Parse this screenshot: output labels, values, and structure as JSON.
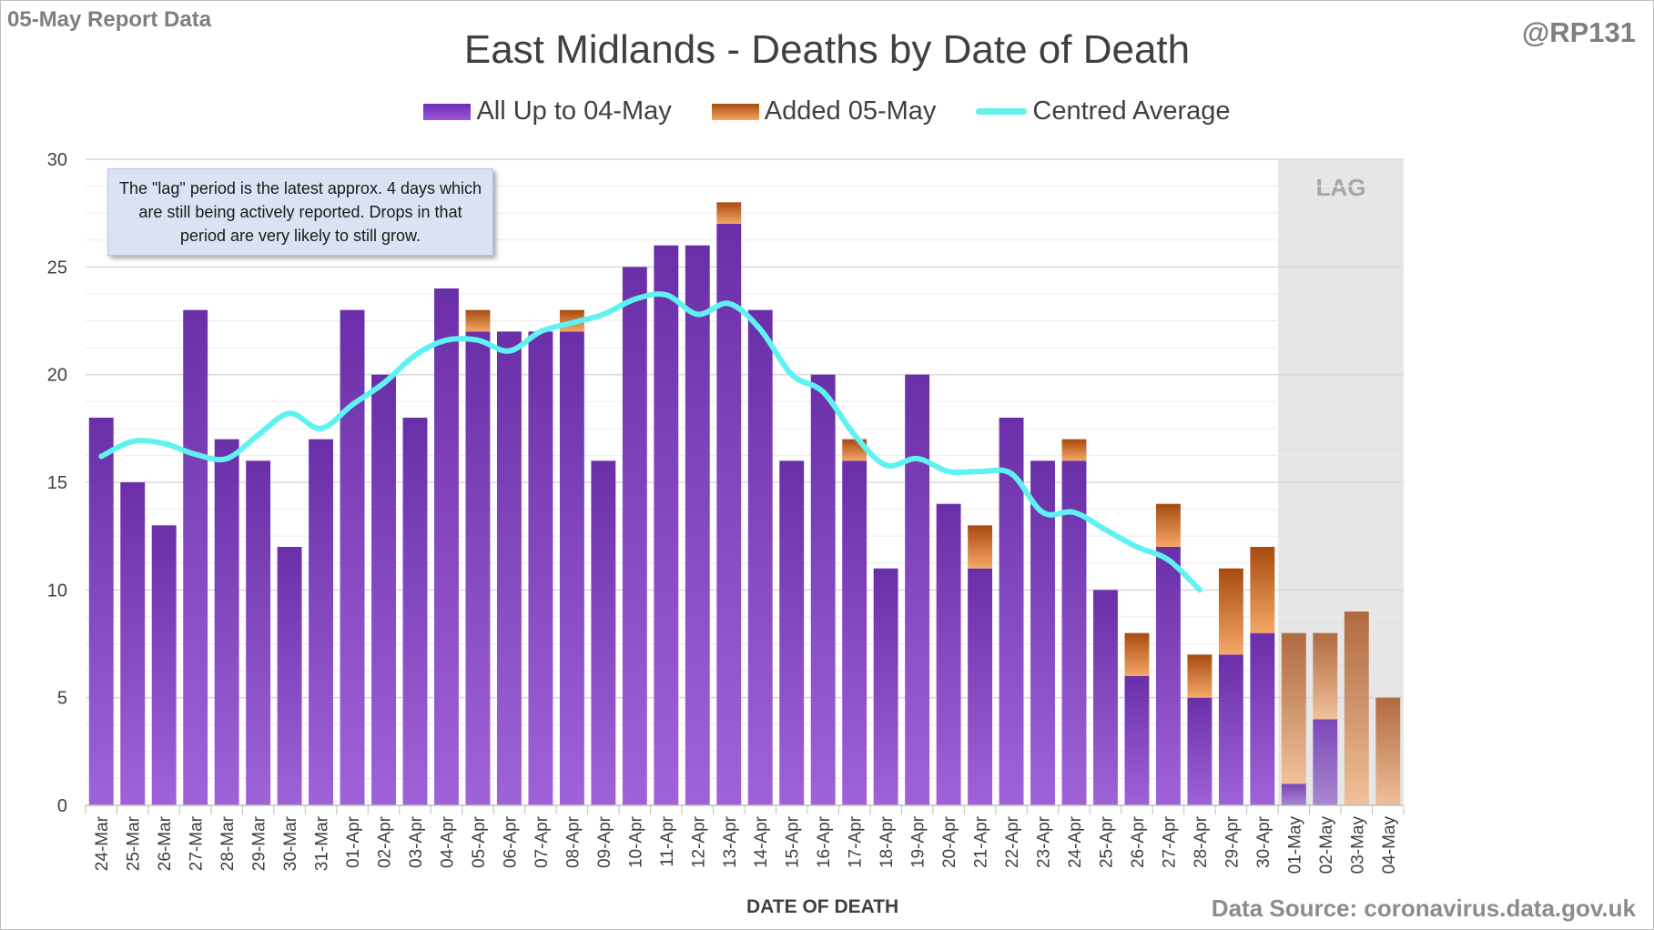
{
  "header": {
    "report_label": "05-May Report Data",
    "handle": "@RP131",
    "title": "East Midlands - Deaths by Date of Death"
  },
  "legend": {
    "all_label": "All Up to 04-May",
    "added_label": "Added 05-May",
    "avg_label": "Centred Average"
  },
  "note": "The \"lag\" period is the latest approx. 4 days which are still being actively reported. Drops in that period are very likely to still grow.",
  "lag_label": "LAG",
  "footer": {
    "source": "Data Source: coronavirus.data.gov.uk"
  },
  "colors": {
    "all": "#7030a0",
    "added": "#c55a11",
    "average": "#5ef2f2",
    "lag_shade": "#e6e6e6"
  },
  "chart_data": {
    "type": "bar",
    "title": "East Midlands - Deaths by Date of Death",
    "xlabel": "DATE OF DEATH",
    "ylabel": "",
    "ylim": [
      0,
      30
    ],
    "yticks": [
      0,
      5,
      10,
      15,
      20,
      25,
      30
    ],
    "stacked": true,
    "grid": true,
    "legend_position": "top",
    "categories": [
      "24-Mar",
      "25-Mar",
      "26-Mar",
      "27-Mar",
      "28-Mar",
      "29-Mar",
      "30-Mar",
      "31-Mar",
      "01-Apr",
      "02-Apr",
      "03-Apr",
      "04-Apr",
      "05-Apr",
      "06-Apr",
      "07-Apr",
      "08-Apr",
      "09-Apr",
      "10-Apr",
      "11-Apr",
      "12-Apr",
      "13-Apr",
      "14-Apr",
      "15-Apr",
      "16-Apr",
      "17-Apr",
      "18-Apr",
      "19-Apr",
      "20-Apr",
      "21-Apr",
      "22-Apr",
      "23-Apr",
      "24-Apr",
      "25-Apr",
      "26-Apr",
      "27-Apr",
      "28-Apr",
      "29-Apr",
      "30-Apr",
      "01-May",
      "02-May",
      "03-May",
      "04-May"
    ],
    "series": [
      {
        "name": "All Up to 04-May",
        "values": [
          18,
          15,
          13,
          23,
          17,
          16,
          12,
          17,
          23,
          20,
          18,
          24,
          22,
          22,
          22,
          22,
          16,
          25,
          26,
          26,
          27,
          23,
          16,
          20,
          16,
          11,
          20,
          14,
          11,
          18,
          16,
          16,
          10,
          6,
          12,
          5,
          7,
          8,
          1,
          4,
          0,
          0
        ]
      },
      {
        "name": "Added 05-May",
        "values": [
          0,
          0,
          0,
          0,
          0,
          0,
          0,
          0,
          0,
          0,
          0,
          0,
          1,
          0,
          0,
          1,
          0,
          0,
          0,
          0,
          1,
          0,
          0,
          0,
          1,
          0,
          0,
          0,
          2,
          0,
          0,
          1,
          0,
          2,
          2,
          2,
          4,
          4,
          7,
          4,
          9,
          5
        ]
      },
      {
        "name": "Centred Average",
        "type": "line",
        "values": [
          16.2,
          16.9,
          16.8,
          16.3,
          16.1,
          17.2,
          18.2,
          17.5,
          18.6,
          19.6,
          20.9,
          21.6,
          21.6,
          21.1,
          22.0,
          22.4,
          22.8,
          23.5,
          23.7,
          22.8,
          23.3,
          22.1,
          20.0,
          19.2,
          17.2,
          15.8,
          16.1,
          15.5,
          15.5,
          15.4,
          13.6,
          13.6,
          12.8,
          12.0,
          11.4,
          10.0,
          null,
          null,
          null,
          null,
          null,
          null
        ]
      }
    ],
    "lag_categories": [
      "01-May",
      "02-May",
      "03-May",
      "04-May"
    ]
  }
}
